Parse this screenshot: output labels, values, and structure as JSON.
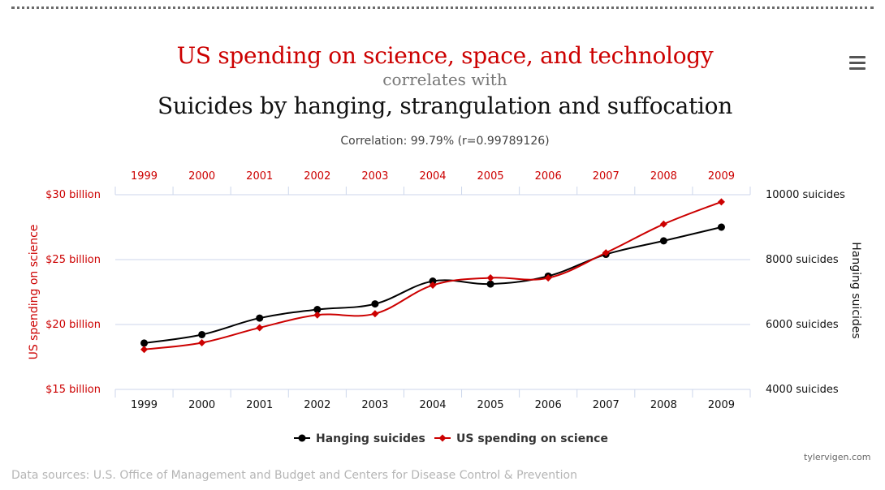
{
  "header": {
    "title_line1": "US spending on science, space, and technology",
    "title_line2": "correlates with",
    "title_line3": "Suicides by hanging, strangulation and suffocation",
    "subtitle": "Correlation: 99.79% (r=0.99789126)"
  },
  "footer": {
    "sources": "Data sources: U.S. Office of Management and Budget and Centers for Disease Control & Prevention",
    "credit": "tylervigen.com"
  },
  "colors": {
    "red": "#cc0000",
    "black": "#000000",
    "grid": "#ccd6eb"
  },
  "chart_data": {
    "type": "line",
    "title": "US spending on science, space, and technology correlates with Suicides by hanging, strangulation and suffocation",
    "subtitle": "Correlation: 99.79% (r=0.99789126)",
    "categories": [
      "1999",
      "2000",
      "2001",
      "2002",
      "2003",
      "2004",
      "2005",
      "2006",
      "2007",
      "2008",
      "2009"
    ],
    "y_left": {
      "label": "US spending on science",
      "ticks": [
        15,
        20,
        25,
        30
      ],
      "tick_labels": [
        "$15 billion",
        "$20 billion",
        "$25 billion",
        "$30 billion"
      ],
      "range": [
        15,
        30
      ]
    },
    "y_right": {
      "label": "Hanging suicides",
      "ticks": [
        4000,
        6000,
        8000,
        10000
      ],
      "tick_labels": [
        "4000 suicides",
        "6000 suicides",
        "8000 suicides",
        "10000 suicides"
      ],
      "range": [
        4000,
        10000
      ]
    },
    "series": [
      {
        "name": "Hanging suicides",
        "axis": "right",
        "color": "#000000",
        "marker": "circle",
        "values": [
          5427,
          5688,
          6198,
          6462,
          6635,
          7336,
          7248,
          7491,
          8161,
          8578,
          9000
        ]
      },
      {
        "name": "US spending on science",
        "axis": "left",
        "color": "#cc0000",
        "marker": "diamond",
        "values": [
          18.079,
          18.594,
          19.753,
          20.734,
          20.831,
          23.029,
          23.597,
          23.584,
          25.525,
          27.731,
          29.449
        ]
      }
    ],
    "grid": true,
    "legend": "bottom-center"
  }
}
